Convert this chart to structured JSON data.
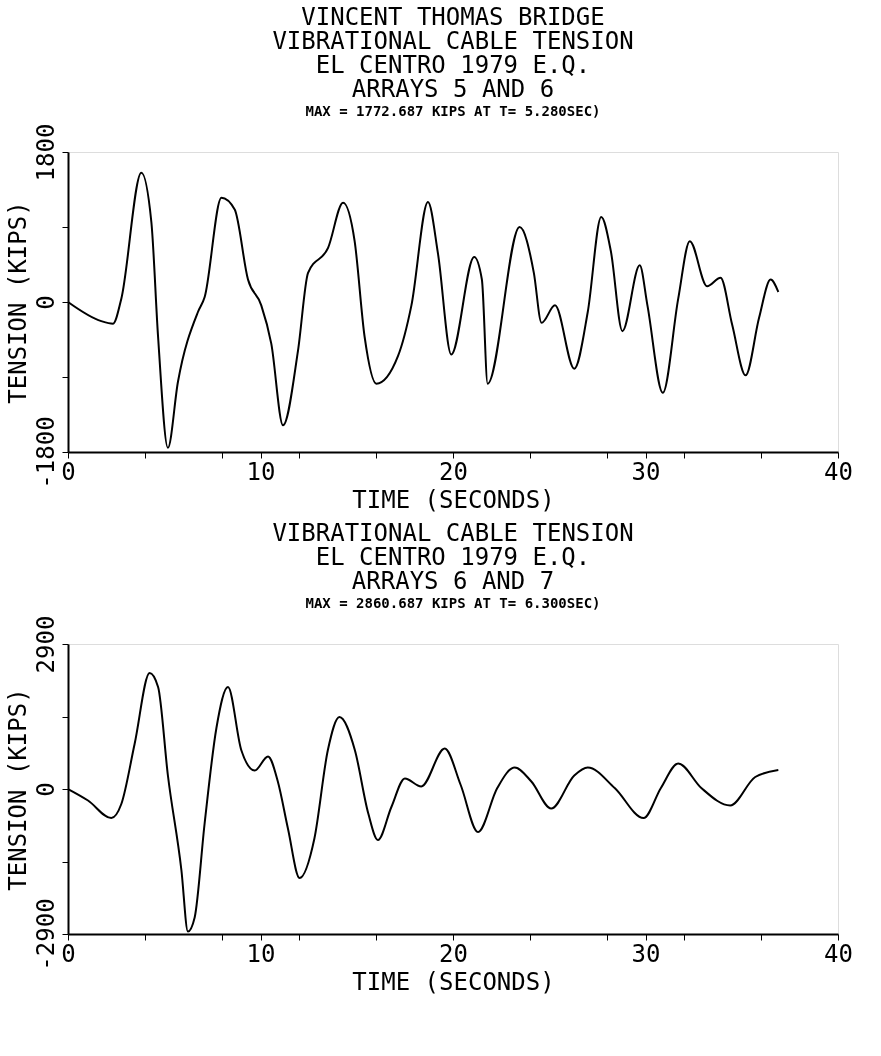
{
  "chart_data": [
    {
      "type": "line",
      "title": [
        "VINCENT THOMAS BRIDGE",
        "VIBRATIONAL CABLE TENSION",
        "EL CENTRO 1979 E.Q.",
        "ARRAYS 5 AND 6"
      ],
      "subtitle": "MAX = 1772.687 KIPS AT T=  5.280SEC)",
      "xlabel": "TIME (SECONDS)",
      "ylabel": "TENSION (KIPS)",
      "x": [
        0,
        1.73,
        2.34,
        2.77,
        3.81,
        4.33,
        4.68,
        5.19,
        5.71,
        6.75,
        7.1,
        7.97,
        8.66,
        9.35,
        10.04,
        10.56,
        11.17,
        11.95,
        12.47,
        13.51,
        14.29,
        14.89,
        15.41,
        16.02,
        17.14,
        17.84,
        18.7,
        19.22,
        19.91,
        21.1,
        21.5,
        21.8,
        23.46,
        24.2,
        24.6,
        25.3,
        26.3,
        27.0,
        27.7,
        28.2,
        28.8,
        29.7,
        30.1,
        30.9,
        31.7,
        32.3,
        33.2,
        33.9,
        34.5,
        35.2,
        35.9,
        36.5,
        36.9
      ],
      "series": [
        {
          "color": "#000000",
          "values": [
            0,
            -230,
            -260,
            40,
            1550,
            960,
            -420,
            -1750,
            -960,
            -120,
            60,
            1250,
            1110,
            270,
            -40,
            -500,
            -1480,
            -580,
            350,
            650,
            1190,
            730,
            -420,
            -980,
            -650,
            -40,
            1200,
            580,
            -630,
            540,
            270,
            -980,
            900,
            350,
            -250,
            -40,
            -800,
            -120,
            1020,
            610,
            -350,
            440,
            -40,
            -1090,
            40,
            730,
            190,
            290,
            -270,
            -880,
            -190,
            270,
            120
          ]
        }
      ],
      "xlim": [
        0,
        40
      ],
      "xticks": [
        0,
        {
          "value": 4,
          "label": null
        },
        {
          "value": 8,
          "label": null
        },
        10,
        {
          "value": 12,
          "label": null
        },
        {
          "value": 16,
          "label": null
        },
        20,
        {
          "value": 24,
          "label": null
        },
        {
          "value": 28,
          "label": null
        },
        30,
        {
          "value": 32,
          "label": null
        },
        {
          "value": 36,
          "label": null
        },
        40
      ],
      "ylim": [
        -1800,
        1800
      ],
      "yticks": [
        -1800,
        {
          "value": -900,
          "label": null
        },
        0,
        {
          "value": 900,
          "label": null
        },
        1800
      ],
      "grid": false,
      "line_style": "solid"
    },
    {
      "type": "line",
      "title": [
        "VIBRATIONAL CABLE TENSION",
        "EL CENTRO 1979 E.Q.",
        "ARRAYS 6 AND 7"
      ],
      "subtitle": "MAX = 2860.687 KIPS AT T=  6.300SEC)",
      "xlabel": "TIME (SECONDS)",
      "ylabel": "TENSION (KIPS)",
      "x": [
        0,
        1.04,
        2.25,
        2.77,
        3.46,
        4.24,
        4.68,
        5.19,
        5.89,
        6.23,
        6.58,
        7.1,
        7.71,
        8.31,
        9.0,
        9.7,
        10.39,
        10.9,
        11.43,
        12.03,
        12.8,
        13.5,
        14.1,
        14.9,
        15.6,
        16.1,
        16.8,
        17.5,
        18.35,
        19.57,
        20.4,
        21.3,
        22.3,
        23.2,
        24.07,
        25.1,
        26.3,
        27.0,
        28.4,
        29.9,
        30.8,
        31.7,
        32.9,
        34.4,
        35.7,
        36.9
      ],
      "series": [
        {
          "color": "#000000",
          "values": [
            0,
            -230,
            -580,
            -300,
            900,
            2320,
            2040,
            270,
            -1620,
            -2850,
            -2570,
            -680,
            1220,
            2040,
            780,
            370,
            650,
            150,
            -800,
            -1780,
            -990,
            780,
            1440,
            780,
            -490,
            -1020,
            -360,
            210,
            50,
            810,
            80,
            -860,
            20,
            430,
            150,
            -390,
            270,
            430,
            20,
            -580,
            20,
            510,
            20,
            -330,
            240,
            380
          ]
        }
      ],
      "xlim": [
        0,
        40
      ],
      "xticks": [
        0,
        {
          "value": 4,
          "label": null
        },
        {
          "value": 8,
          "label": null
        },
        10,
        {
          "value": 12,
          "label": null
        },
        {
          "value": 16,
          "label": null
        },
        20,
        {
          "value": 24,
          "label": null
        },
        {
          "value": 28,
          "label": null
        },
        30,
        {
          "value": 32,
          "label": null
        },
        {
          "value": 36,
          "label": null
        },
        40
      ],
      "ylim": [
        -2900,
        2900
      ],
      "yticks": [
        -2900,
        {
          "value": -1450,
          "label": null
        },
        0,
        {
          "value": 1450,
          "label": null
        },
        2900
      ],
      "grid": false,
      "line_style": "solid"
    }
  ]
}
